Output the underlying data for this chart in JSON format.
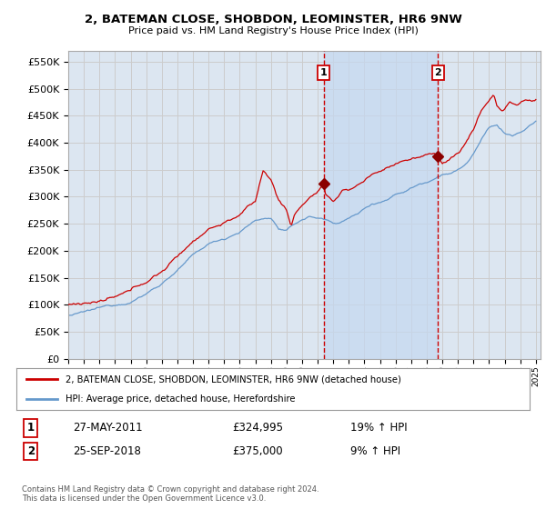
{
  "title": "2, BATEMAN CLOSE, SHOBDON, LEOMINSTER, HR6 9NW",
  "subtitle": "Price paid vs. HM Land Registry's House Price Index (HPI)",
  "ylim": [
    0,
    570000
  ],
  "yticks": [
    0,
    50000,
    100000,
    150000,
    200000,
    250000,
    300000,
    350000,
    400000,
    450000,
    500000,
    550000
  ],
  "ytick_labels": [
    "£0",
    "£50K",
    "£100K",
    "£150K",
    "£200K",
    "£250K",
    "£300K",
    "£350K",
    "£400K",
    "£450K",
    "£500K",
    "£550K"
  ],
  "grid_color": "#cccccc",
  "plot_bg_color": "#dce6f1",
  "shade_color": "#c5d8f0",
  "hpi_color": "#6699cc",
  "price_color": "#cc0000",
  "vline_color": "#cc0000",
  "purchase1_date": 2011.38,
  "purchase1_price": 324995,
  "purchase2_date": 2018.73,
  "purchase2_price": 375000,
  "legend_label1": "2, BATEMAN CLOSE, SHOBDON, LEOMINSTER, HR6 9NW (detached house)",
  "legend_label2": "HPI: Average price, detached house, Herefordshire",
  "footer": "Contains HM Land Registry data © Crown copyright and database right 2024.\nThis data is licensed under the Open Government Licence v3.0.",
  "table_row1": [
    "1",
    "27-MAY-2011",
    "£324,995",
    "19% ↑ HPI"
  ],
  "table_row2": [
    "2",
    "25-SEP-2018",
    "£375,000",
    "9% ↑ HPI"
  ]
}
